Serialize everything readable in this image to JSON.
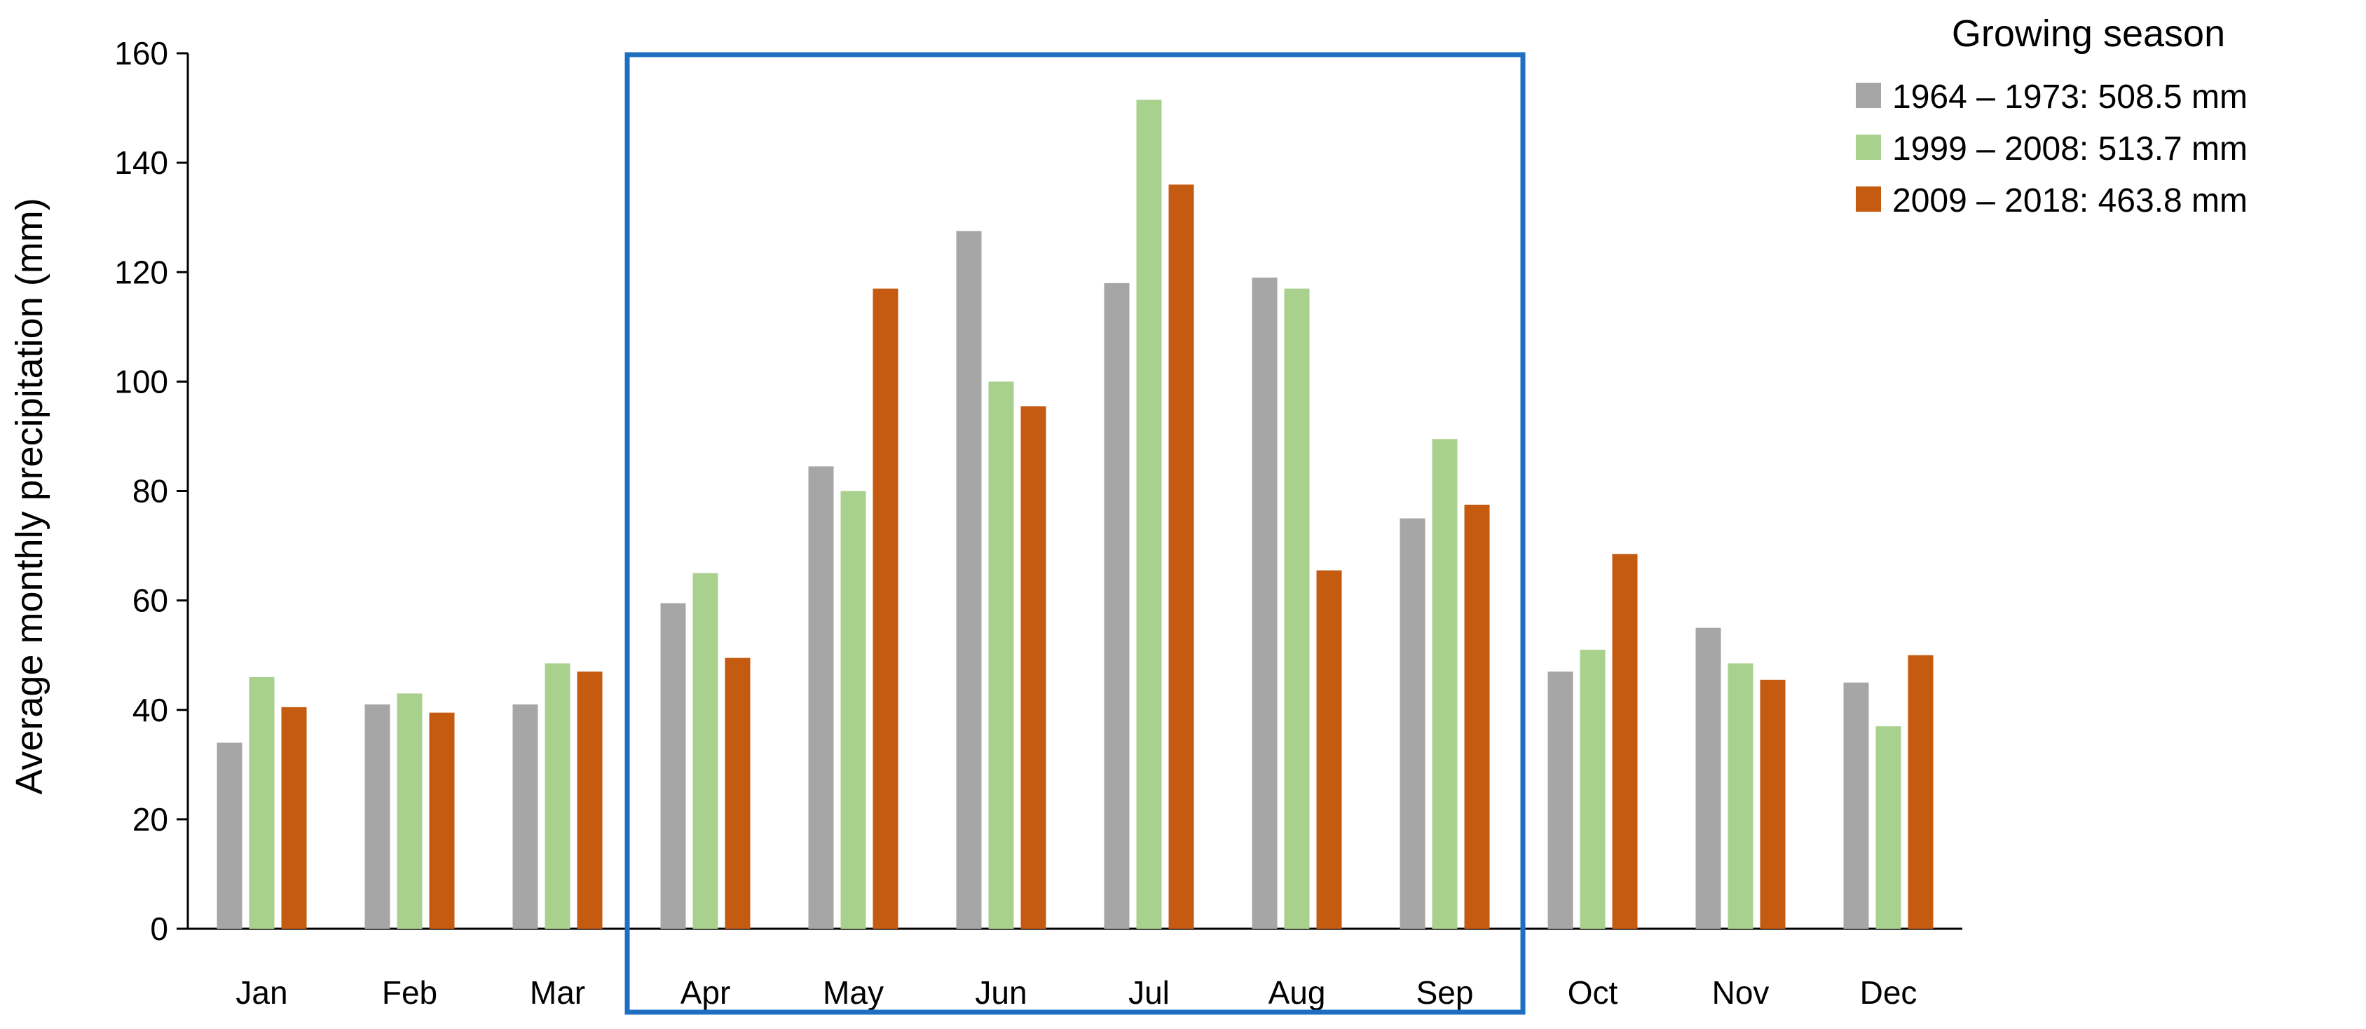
{
  "chart_data": {
    "type": "bar",
    "title": "",
    "xlabel": "",
    "ylabel": "Average monthly precipitation (mm)",
    "ylim": [
      0,
      160
    ],
    "yticks": [
      0,
      20,
      40,
      60,
      80,
      100,
      120,
      140,
      160
    ],
    "grid": false,
    "categories": [
      "Jan",
      "Feb",
      "Mar",
      "Apr",
      "May",
      "Jun",
      "Jul",
      "Aug",
      "Sep",
      "Oct",
      "Nov",
      "Dec"
    ],
    "series": [
      {
        "name": "1964 – 1973: 508.5 mm",
        "color": "#a6a6a6",
        "values": [
          34,
          41,
          41,
          59.5,
          84.5,
          127.5,
          118,
          119,
          75,
          47,
          55,
          45
        ]
      },
      {
        "name": "1999 – 2008: 513.7 mm",
        "color": "#a9d18e",
        "values": [
          46,
          43,
          48.5,
          65,
          80,
          100,
          151.5,
          117,
          89.5,
          51,
          48.5,
          37
        ]
      },
      {
        "name": "2009 – 2018: 463.8 mm",
        "color": "#c55a11",
        "values": [
          40.5,
          39.5,
          47,
          49.5,
          117,
          95.5,
          136,
          65.5,
          77.5,
          68.5,
          45.5,
          50
        ]
      }
    ],
    "legend": {
      "title": "Growing season",
      "position": "top-right"
    },
    "highlight": {
      "label": "Growing season",
      "from": "Apr",
      "to": "Sep",
      "color": "#1f6fc0"
    }
  }
}
